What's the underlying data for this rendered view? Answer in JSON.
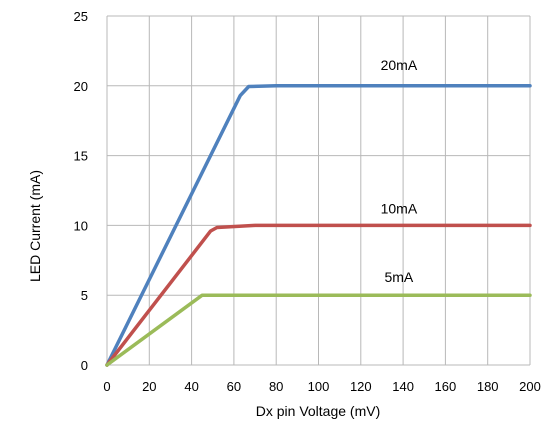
{
  "chart_data": {
    "type": "line",
    "title": "",
    "xlabel": "Dx pin Voltage (mV)",
    "ylabel": "LED Current (mA)",
    "xlim": [
      0,
      200
    ],
    "ylim": [
      0,
      25
    ],
    "xticks": [
      0,
      20,
      40,
      60,
      80,
      100,
      120,
      140,
      160,
      180,
      200
    ],
    "yticks": [
      0,
      5,
      10,
      15,
      20,
      25
    ],
    "grid": true,
    "legend": "none",
    "series": [
      {
        "color": "#4f81bd",
        "x": [
          0,
          63,
          67,
          80,
          200
        ],
        "y": [
          0,
          19.3,
          19.95,
          20,
          20
        ]
      },
      {
        "color": "#c0504d",
        "x": [
          0,
          49,
          52,
          70,
          200
        ],
        "y": [
          0,
          9.6,
          9.85,
          10,
          10
        ]
      },
      {
        "color": "#9bbb59",
        "x": [
          0,
          45,
          200
        ],
        "y": [
          0,
          5,
          5
        ]
      }
    ],
    "annotations": [
      {
        "text": "20mA",
        "x": 138,
        "y": 21.5
      },
      {
        "text": "10mA",
        "x": 138,
        "y": 11.2
      },
      {
        "text": "5mA",
        "x": 138,
        "y": 6.3
      }
    ]
  }
}
